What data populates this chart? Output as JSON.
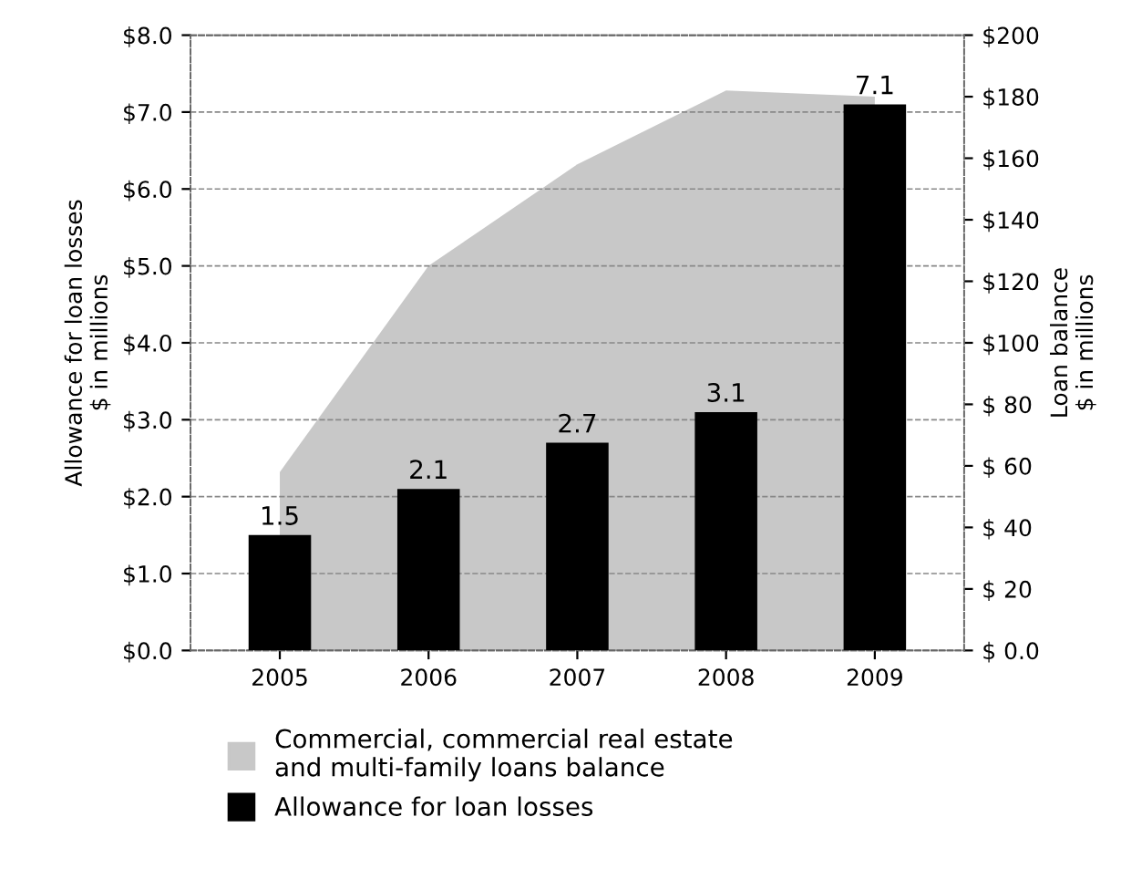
{
  "chart_data": {
    "type": "bar",
    "categories": [
      "2005",
      "2006",
      "2007",
      "2008",
      "2009"
    ],
    "ylabel": "Allowance for loan losses\n$ in millions",
    "y2label": "Loan balance\n$ in millions",
    "series": [
      {
        "name": "Commercial, commercial real estate\nand multi-family loans balance",
        "type": "area",
        "axis": "y2",
        "color": "#c8c8c8",
        "values": [
          58,
          125,
          158,
          182,
          180
        ]
      },
      {
        "name": "Allowance for loan losses",
        "color": "#000000",
        "values": [
          1.5,
          2.1,
          2.7,
          3.1,
          7.1
        ],
        "value_labels": [
          "1.5",
          "2.1",
          "2.7",
          "3.1",
          "7.1"
        ]
      }
    ],
    "ylim": [
      0,
      8
    ],
    "yticks": [
      {
        "value": 0,
        "label": "$0.0"
      },
      {
        "value": 1,
        "label": "$1.0"
      },
      {
        "value": 2,
        "label": "$2.0"
      },
      {
        "value": 3,
        "label": "$3.0"
      },
      {
        "value": 4,
        "label": "$4.0"
      },
      {
        "value": 5,
        "label": "$5.0"
      },
      {
        "value": 6,
        "label": "$6.0"
      },
      {
        "value": 7,
        "label": "$7.0"
      },
      {
        "value": 8,
        "label": "$8.0"
      }
    ],
    "y2lim": [
      0,
      200
    ],
    "y2ticks": [
      {
        "value": 0,
        "label": "$ 0.0"
      },
      {
        "value": 20,
        "label": "$ 20"
      },
      {
        "value": 40,
        "label": "$ 40"
      },
      {
        "value": 60,
        "label": "$ 60"
      },
      {
        "value": 80,
        "label": "$ 80"
      },
      {
        "value": 100,
        "label": "$100"
      },
      {
        "value": 120,
        "label": "$120"
      },
      {
        "value": 140,
        "label": "$140"
      },
      {
        "value": 160,
        "label": "$160"
      },
      {
        "value": 180,
        "label": "$180"
      },
      {
        "value": 200,
        "label": "$200"
      }
    ],
    "grid": "y",
    "line_style": "dashed",
    "legend": "bottom"
  }
}
